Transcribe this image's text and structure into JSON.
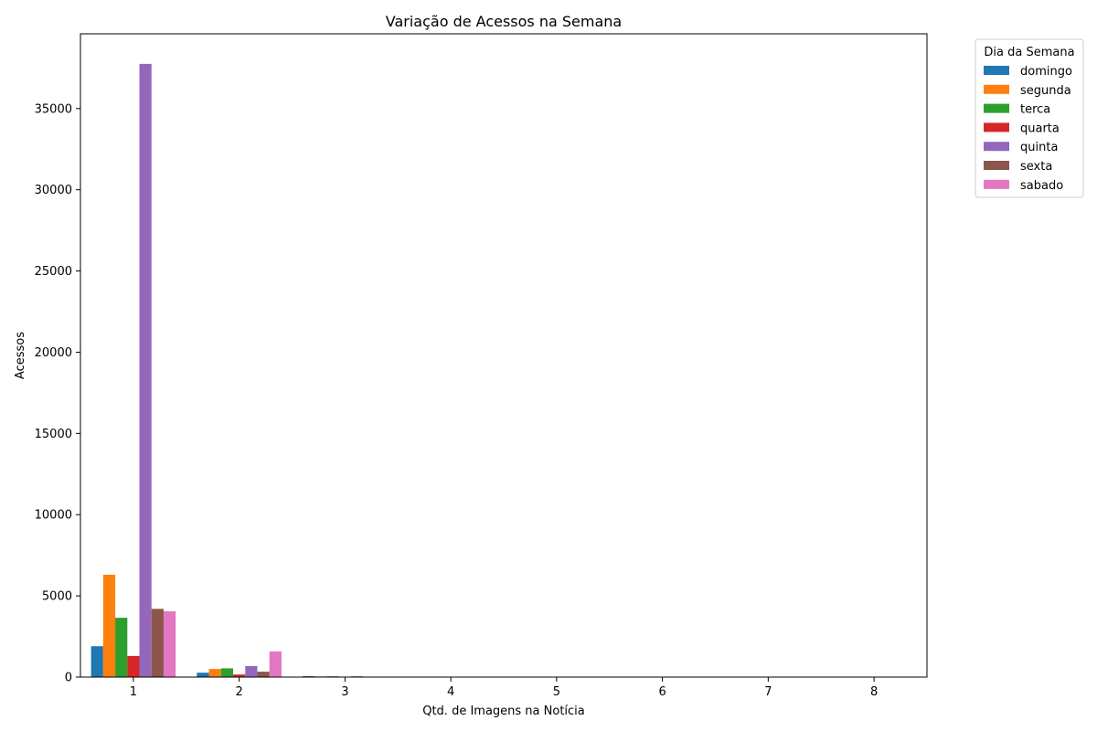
{
  "chart_data": {
    "type": "bar",
    "title": "Variação de Acessos na Semana",
    "xlabel": "Qtd. de Imagens na Notícia",
    "ylabel": "Acessos",
    "categories": [
      "1",
      "2",
      "3",
      "4",
      "5",
      "6",
      "7",
      "8"
    ],
    "ylim": [
      0,
      39600
    ],
    "yticks": [
      0,
      5000,
      10000,
      15000,
      20000,
      25000,
      30000,
      35000
    ],
    "grid": false,
    "legend": {
      "title": "Dia da Semana",
      "placement": "outside-top-right"
    },
    "series": [
      {
        "name": "domingo",
        "color": "#1f77b4",
        "values": [
          1900,
          270,
          60,
          0,
          0,
          0,
          0,
          0
        ]
      },
      {
        "name": "segunda",
        "color": "#ff7f0e",
        "values": [
          6300,
          500,
          40,
          0,
          0,
          0,
          0,
          0
        ]
      },
      {
        "name": "terca",
        "color": "#2ca02c",
        "values": [
          3650,
          540,
          50,
          0,
          0,
          0,
          0,
          0
        ]
      },
      {
        "name": "quarta",
        "color": "#d62728",
        "values": [
          1300,
          160,
          10,
          0,
          0,
          0,
          0,
          0
        ]
      },
      {
        "name": "quinta",
        "color": "#9467bd",
        "values": [
          37750,
          680,
          50,
          0,
          0,
          0,
          0,
          0
        ]
      },
      {
        "name": "sexta",
        "color": "#8c564b",
        "values": [
          4200,
          330,
          15,
          0,
          0,
          0,
          0,
          0
        ]
      },
      {
        "name": "sabado",
        "color": "#e377c2",
        "values": [
          4050,
          1580,
          30,
          0,
          0,
          0,
          0,
          0
        ]
      }
    ]
  }
}
